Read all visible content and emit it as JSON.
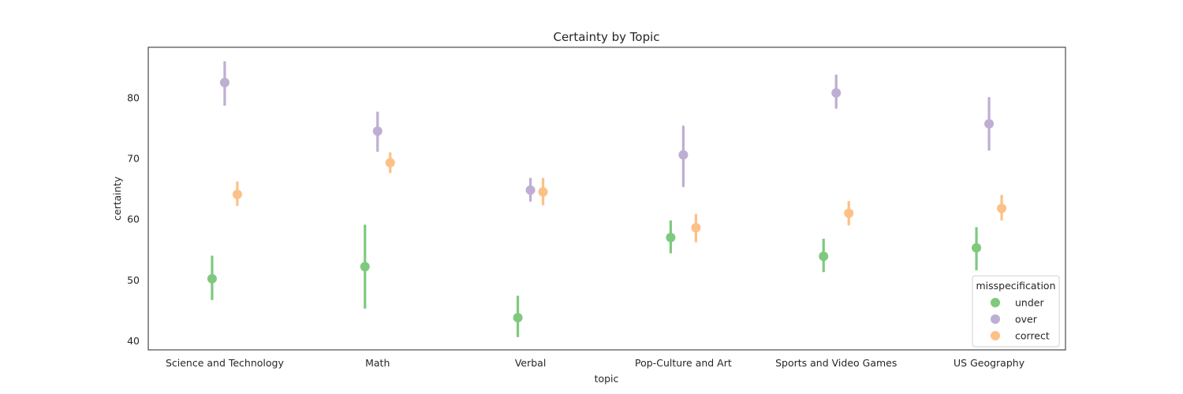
{
  "chart_data": {
    "type": "scatter",
    "title": "Certainty by Topic",
    "xlabel": "topic",
    "ylabel": "certainty",
    "categories": [
      "Science and Technology",
      "Math",
      "Verbal",
      "Pop-Culture and Art",
      "Sports and Video Games",
      "US Geography"
    ],
    "ylim": [
      38.5,
      88.3
    ],
    "yticks": [
      40,
      50,
      60,
      70,
      80
    ],
    "grid": false,
    "legend": {
      "title": "misspecification",
      "placement": "lower-right"
    },
    "series": [
      {
        "name": "under",
        "color": "#7fc97f",
        "values": [
          50.2,
          52.2,
          43.8,
          57.0,
          53.9,
          55.3
        ],
        "ci_low": [
          46.7,
          45.3,
          40.6,
          54.4,
          51.3,
          51.6
        ],
        "ci_high": [
          54.0,
          59.1,
          47.4,
          59.8,
          56.8,
          58.7
        ]
      },
      {
        "name": "over",
        "color": "#beaed4",
        "values": [
          82.5,
          74.5,
          64.8,
          70.6,
          80.8,
          75.7
        ],
        "ci_low": [
          78.7,
          71.1,
          62.9,
          65.3,
          78.2,
          71.3
        ],
        "ci_high": [
          86.0,
          77.7,
          66.8,
          75.4,
          83.8,
          80.1
        ]
      },
      {
        "name": "correct",
        "color": "#fdc086",
        "values": [
          64.1,
          69.3,
          64.5,
          58.6,
          61.0,
          61.8
        ],
        "ci_low": [
          62.2,
          67.6,
          62.3,
          56.2,
          59.0,
          59.8
        ],
        "ci_high": [
          66.2,
          71.0,
          66.8,
          60.9,
          63.0,
          64.0
        ]
      }
    ]
  }
}
